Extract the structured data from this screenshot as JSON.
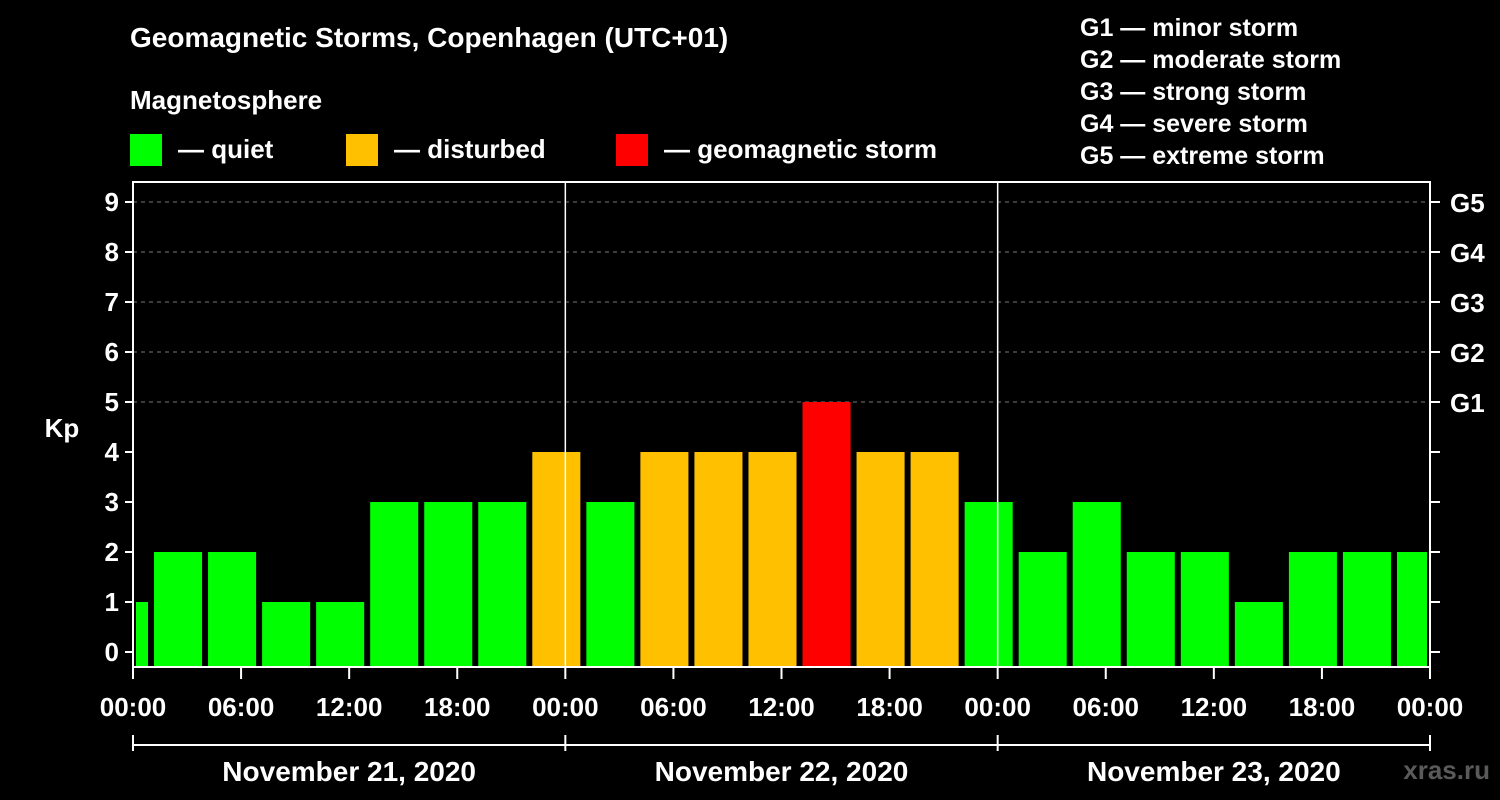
{
  "chart_data": {
    "type": "bar",
    "title": "Geomagnetic Storms, Copenhagen (UTC+01)",
    "subtitle": "Magnetosphere",
    "ylabel": "Kp",
    "ylim": [
      0,
      9
    ],
    "yticks": [
      "0",
      "1",
      "2",
      "3",
      "4",
      "5",
      "6",
      "7",
      "8",
      "9"
    ],
    "right_axis_labels": [
      {
        "kp": 5,
        "label": "G1"
      },
      {
        "kp": 6,
        "label": "G2"
      },
      {
        "kp": 7,
        "label": "G3"
      },
      {
        "kp": 8,
        "label": "G4"
      },
      {
        "kp": 9,
        "label": "G5"
      }
    ],
    "x_tick_labels": [
      "00:00",
      "06:00",
      "12:00",
      "18:00",
      "00:00",
      "06:00",
      "12:00",
      "18:00",
      "00:00",
      "06:00",
      "12:00",
      "18:00",
      "00:00"
    ],
    "x_hours_range": [
      0,
      72
    ],
    "day_labels": [
      "November 21, 2020",
      "November 22, 2020",
      "November 23, 2020"
    ],
    "legend": [
      {
        "label": "— quiet",
        "color": "#00ff00"
      },
      {
        "label": "— disturbed",
        "color": "#ffc000"
      },
      {
        "label": "— geomagnetic storm",
        "color": "#ff0000"
      }
    ],
    "storm_scale": [
      "G1 — minor storm",
      "G2 — moderate storm",
      "G3 — strong storm",
      "G4 — severe storm",
      "G5 — extreme storm"
    ],
    "bars": [
      {
        "start_hour": 0,
        "end_hour": 1,
        "kp": 1,
        "status": "quiet"
      },
      {
        "start_hour": 1,
        "end_hour": 4,
        "kp": 2,
        "status": "quiet"
      },
      {
        "start_hour": 4,
        "end_hour": 7,
        "kp": 2,
        "status": "quiet"
      },
      {
        "start_hour": 7,
        "end_hour": 10,
        "kp": 1,
        "status": "quiet"
      },
      {
        "start_hour": 10,
        "end_hour": 13,
        "kp": 1,
        "status": "quiet"
      },
      {
        "start_hour": 13,
        "end_hour": 16,
        "kp": 3,
        "status": "quiet"
      },
      {
        "start_hour": 16,
        "end_hour": 19,
        "kp": 3,
        "status": "quiet"
      },
      {
        "start_hour": 19,
        "end_hour": 22,
        "kp": 3,
        "status": "quiet"
      },
      {
        "start_hour": 22,
        "end_hour": 25,
        "kp": 4,
        "status": "disturbed"
      },
      {
        "start_hour": 25,
        "end_hour": 28,
        "kp": 3,
        "status": "quiet"
      },
      {
        "start_hour": 28,
        "end_hour": 31,
        "kp": 4,
        "status": "disturbed"
      },
      {
        "start_hour": 31,
        "end_hour": 34,
        "kp": 4,
        "status": "disturbed"
      },
      {
        "start_hour": 34,
        "end_hour": 37,
        "kp": 4,
        "status": "disturbed"
      },
      {
        "start_hour": 37,
        "end_hour": 40,
        "kp": 5,
        "status": "storm"
      },
      {
        "start_hour": 40,
        "end_hour": 43,
        "kp": 4,
        "status": "disturbed"
      },
      {
        "start_hour": 43,
        "end_hour": 46,
        "kp": 4,
        "status": "disturbed"
      },
      {
        "start_hour": 46,
        "end_hour": 49,
        "kp": 3,
        "status": "quiet"
      },
      {
        "start_hour": 49,
        "end_hour": 52,
        "kp": 2,
        "status": "quiet"
      },
      {
        "start_hour": 52,
        "end_hour": 55,
        "kp": 3,
        "status": "quiet"
      },
      {
        "start_hour": 55,
        "end_hour": 58,
        "kp": 2,
        "status": "quiet"
      },
      {
        "start_hour": 58,
        "end_hour": 61,
        "kp": 2,
        "status": "quiet"
      },
      {
        "start_hour": 61,
        "end_hour": 64,
        "kp": 1,
        "status": "quiet"
      },
      {
        "start_hour": 64,
        "end_hour": 67,
        "kp": 2,
        "status": "quiet"
      },
      {
        "start_hour": 67,
        "end_hour": 70,
        "kp": 2,
        "status": "quiet"
      },
      {
        "start_hour": 70,
        "end_hour": 72,
        "kp": 2,
        "status": "quiet"
      }
    ],
    "status_colors": {
      "quiet": "#00ff00",
      "disturbed": "#ffc000",
      "storm": "#ff0000"
    }
  },
  "watermark": "xras.ru"
}
